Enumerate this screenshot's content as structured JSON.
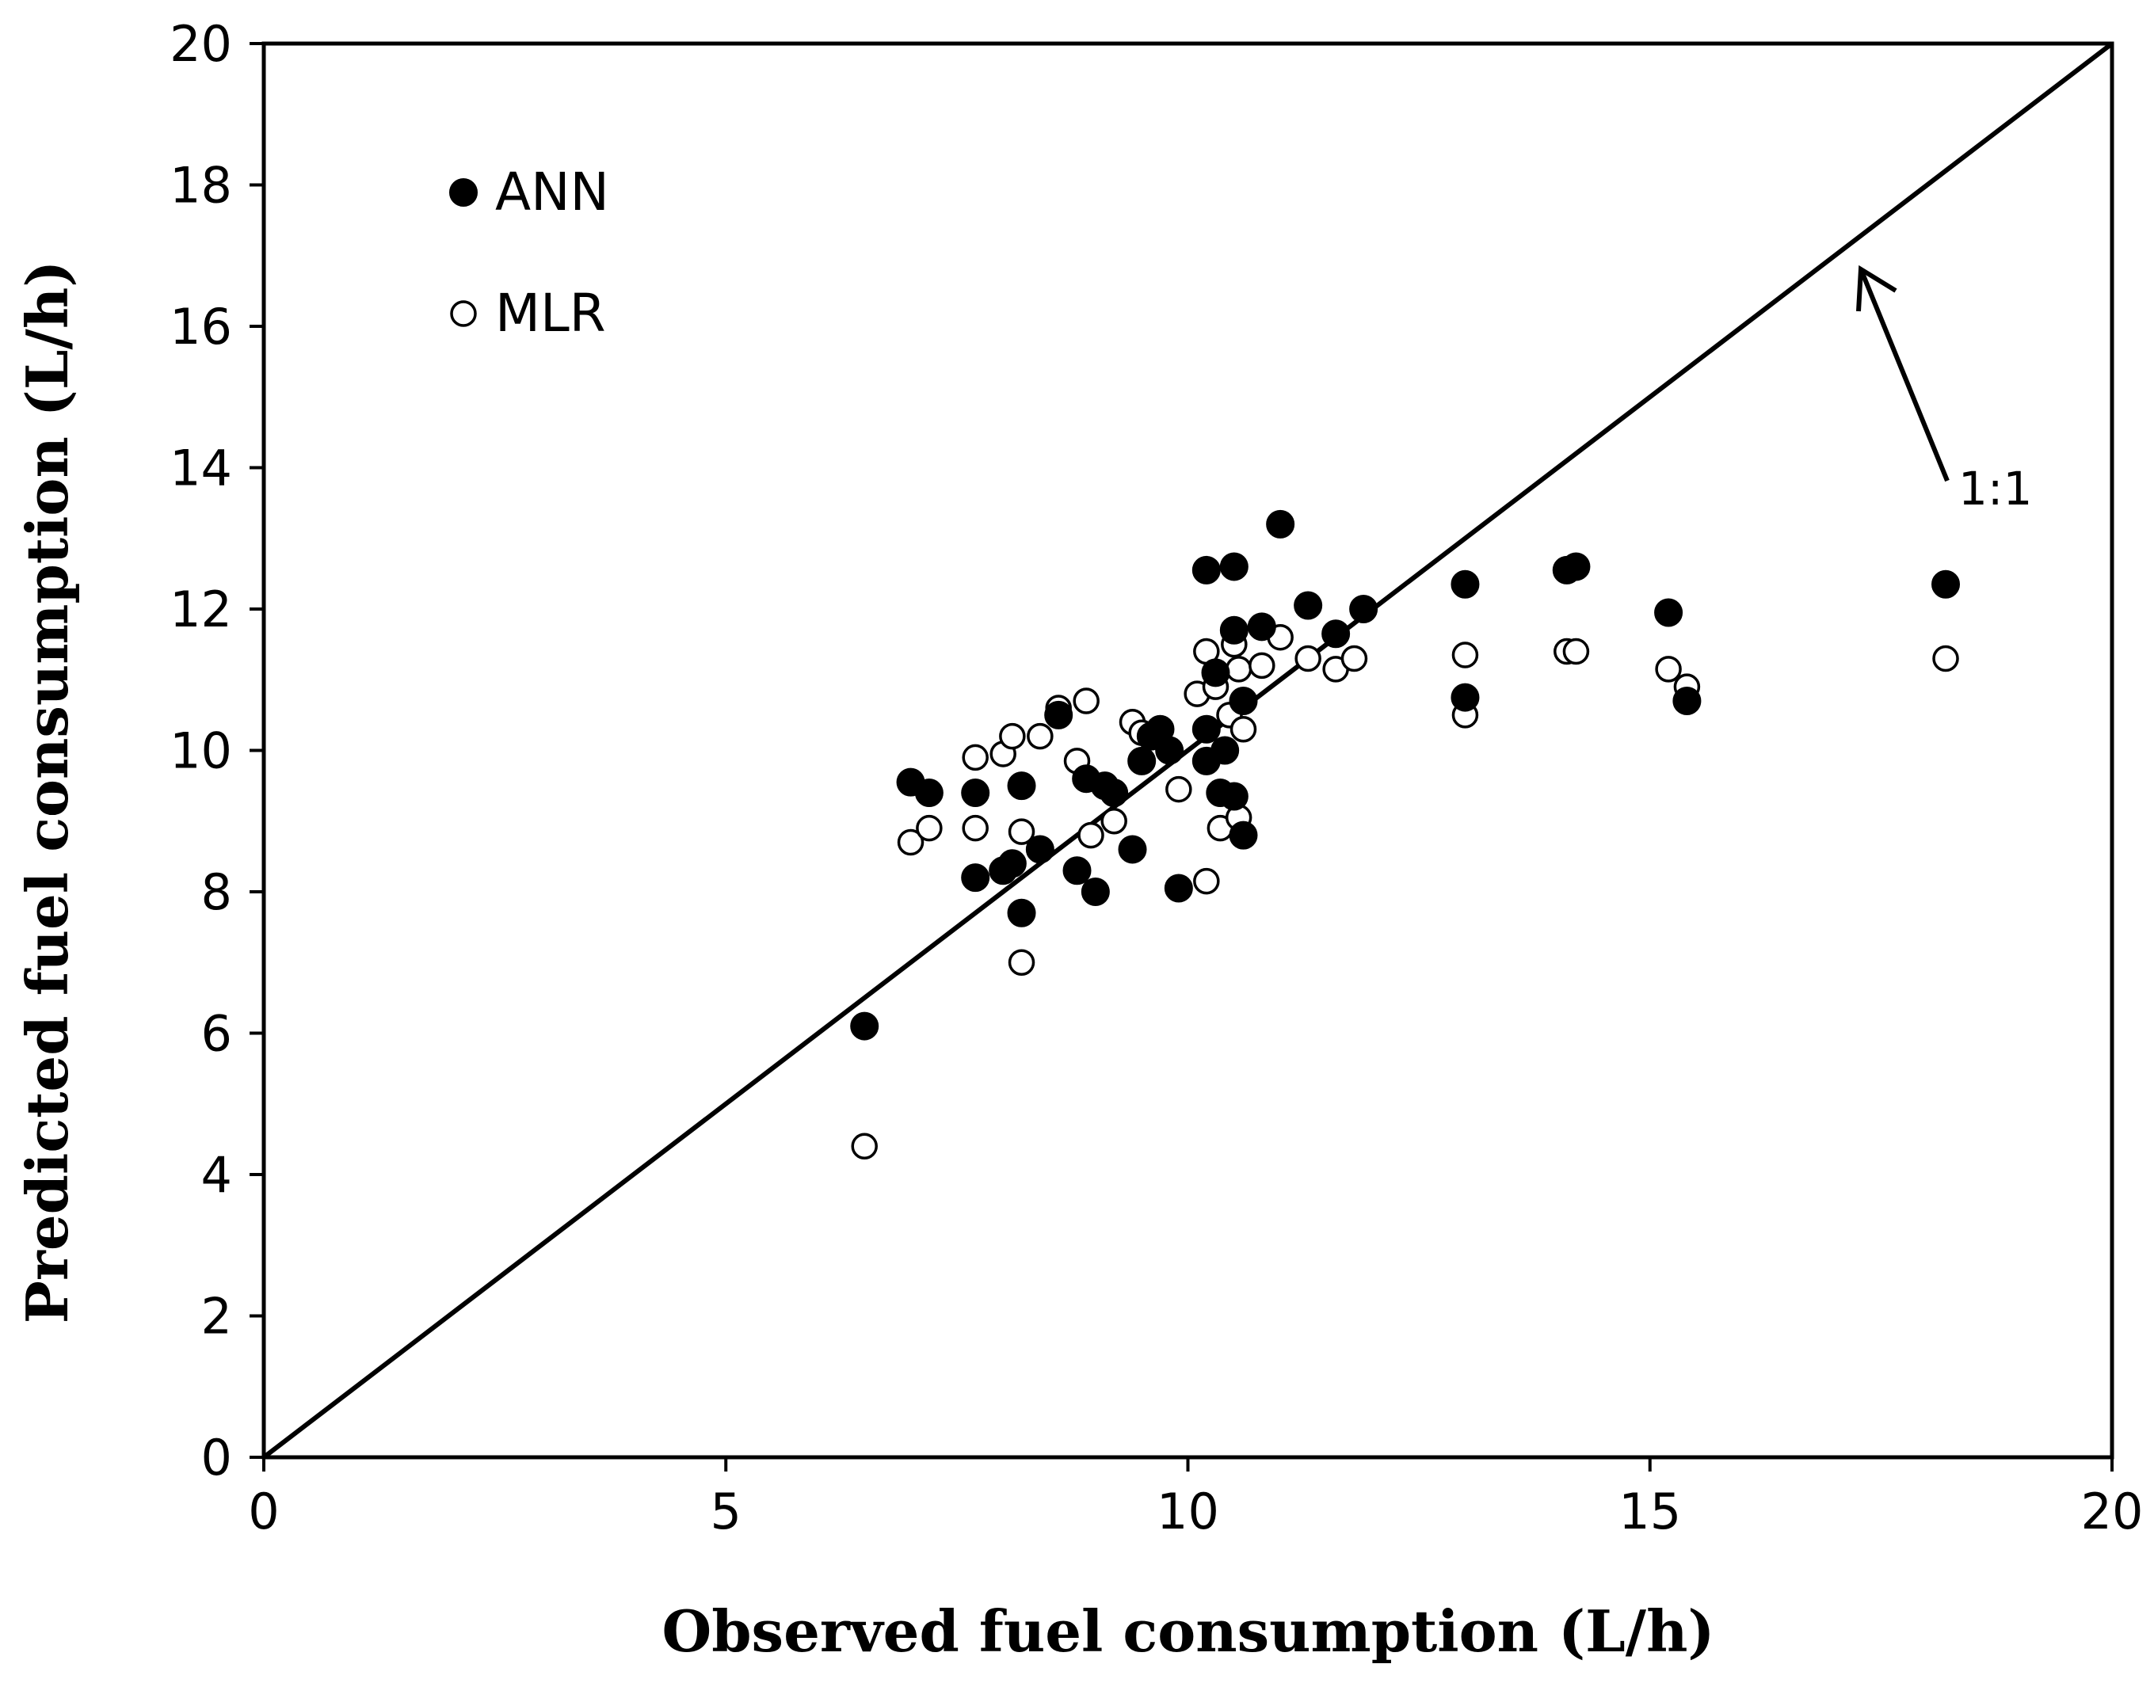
{
  "chart_data": {
    "type": "scatter",
    "xlabel": "Observed fuel consumption  (L/h)",
    "ylabel": "Predicted fuel consumption  (L/h)",
    "xlim": [
      0,
      20
    ],
    "ylim": [
      0,
      20
    ],
    "xticks": [
      "0",
      "5",
      "10",
      "15",
      "20"
    ],
    "yticks": [
      "0",
      "2",
      "4",
      "6",
      "8",
      "10",
      "12",
      "14",
      "16",
      "18",
      "20"
    ],
    "grid": false,
    "legend_position": "top-left",
    "annotation": {
      "text": "1:1",
      "target": "identity line"
    },
    "reference_line": {
      "name": "1:1",
      "x": [
        0,
        20
      ],
      "y": [
        0,
        20
      ]
    },
    "series": [
      {
        "name": "ANN",
        "marker": "filled-circle",
        "color": "#000000",
        "points": [
          [
            6.5,
            6.1
          ],
          [
            7.0,
            9.55
          ],
          [
            7.2,
            9.4
          ],
          [
            7.7,
            9.4
          ],
          [
            7.7,
            8.2
          ],
          [
            8.0,
            8.3
          ],
          [
            8.1,
            8.4
          ],
          [
            8.2,
            9.5
          ],
          [
            8.2,
            7.7
          ],
          [
            8.4,
            8.6
          ],
          [
            8.6,
            10.5
          ],
          [
            8.8,
            8.3
          ],
          [
            8.9,
            9.6
          ],
          [
            9.0,
            8.0
          ],
          [
            9.1,
            9.5
          ],
          [
            9.2,
            9.4
          ],
          [
            9.4,
            8.6
          ],
          [
            9.5,
            9.85
          ],
          [
            9.6,
            10.2
          ],
          [
            9.7,
            10.3
          ],
          [
            9.8,
            10.0
          ],
          [
            9.9,
            8.05
          ],
          [
            10.2,
            10.3
          ],
          [
            10.2,
            12.55
          ],
          [
            10.2,
            9.85
          ],
          [
            10.3,
            11.1
          ],
          [
            10.35,
            9.4
          ],
          [
            10.4,
            10.0
          ],
          [
            10.5,
            12.6
          ],
          [
            10.5,
            11.7
          ],
          [
            10.5,
            9.35
          ],
          [
            10.6,
            8.8
          ],
          [
            10.6,
            10.7
          ],
          [
            10.8,
            11.75
          ],
          [
            11.0,
            13.2
          ],
          [
            11.3,
            12.05
          ],
          [
            11.6,
            11.65
          ],
          [
            11.9,
            12.0
          ],
          [
            13.0,
            12.35
          ],
          [
            13.0,
            10.75
          ],
          [
            14.1,
            12.55
          ],
          [
            14.2,
            12.6
          ],
          [
            15.2,
            11.95
          ],
          [
            15.4,
            10.7
          ],
          [
            18.2,
            12.35
          ]
        ]
      },
      {
        "name": "MLR",
        "marker": "open-circle",
        "color": "#000000",
        "points": [
          [
            6.5,
            4.4
          ],
          [
            7.0,
            8.7
          ],
          [
            7.2,
            8.9
          ],
          [
            7.7,
            9.9
          ],
          [
            7.7,
            8.9
          ],
          [
            8.0,
            9.95
          ],
          [
            8.1,
            10.2
          ],
          [
            8.2,
            8.85
          ],
          [
            8.2,
            7.0
          ],
          [
            8.4,
            10.2
          ],
          [
            8.6,
            10.6
          ],
          [
            8.8,
            9.85
          ],
          [
            8.9,
            10.7
          ],
          [
            8.95,
            8.8
          ],
          [
            9.1,
            9.5
          ],
          [
            9.2,
            9.0
          ],
          [
            9.4,
            10.4
          ],
          [
            9.5,
            10.25
          ],
          [
            9.7,
            10.3
          ],
          [
            9.9,
            9.45
          ],
          [
            10.1,
            10.8
          ],
          [
            10.2,
            11.4
          ],
          [
            10.2,
            8.15
          ],
          [
            10.3,
            10.9
          ],
          [
            10.35,
            8.9
          ],
          [
            10.45,
            10.5
          ],
          [
            10.5,
            11.5
          ],
          [
            10.55,
            9.05
          ],
          [
            10.55,
            11.15
          ],
          [
            10.6,
            10.3
          ],
          [
            10.8,
            11.2
          ],
          [
            11.0,
            11.6
          ],
          [
            11.3,
            11.3
          ],
          [
            11.6,
            11.15
          ],
          [
            11.8,
            11.3
          ],
          [
            13.0,
            11.35
          ],
          [
            13.0,
            10.5
          ],
          [
            14.1,
            11.4
          ],
          [
            14.2,
            11.4
          ],
          [
            15.2,
            11.15
          ],
          [
            15.4,
            10.9
          ],
          [
            18.2,
            11.3
          ]
        ]
      }
    ]
  }
}
